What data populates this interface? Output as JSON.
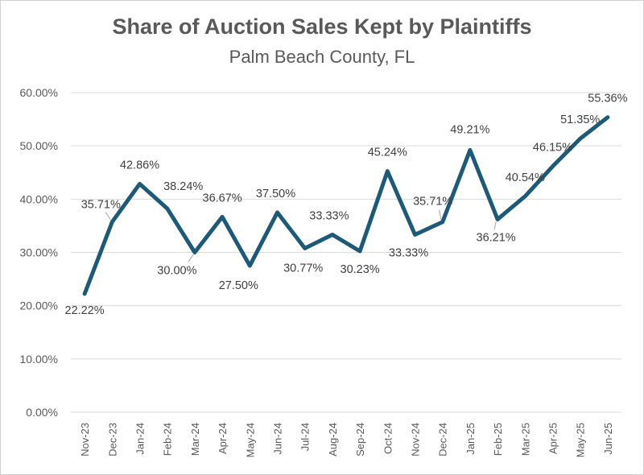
{
  "colors": {
    "line": "#1d5a78",
    "grid": "#d9d9d9",
    "text": "#595959",
    "leader": "#a6a6a6"
  },
  "chart_data": {
    "type": "line",
    "title": "Share of Auction Sales Kept by Plaintiffs",
    "subtitle": "Palm Beach County, FL",
    "xlabel": "",
    "ylabel": "",
    "ylim": [
      0,
      60
    ],
    "y_ticks": [
      "0.00%",
      "10.00%",
      "20.00%",
      "30.00%",
      "40.00%",
      "50.00%",
      "60.00%"
    ],
    "grid": true,
    "categories": [
      "Nov-23",
      "Dec-23",
      "Jan-24",
      "Feb-24",
      "Mar-24",
      "Apr-24",
      "May-24",
      "Jun-24",
      "Jul-24",
      "Aug-24",
      "Sep-24",
      "Oct-24",
      "Nov-24",
      "Dec-24",
      "Jan-25",
      "Feb-25",
      "Mar-25",
      "Apr-25",
      "May-25",
      "Jun-25"
    ],
    "series": [
      {
        "values": [
          22.22,
          35.71,
          42.86,
          38.24,
          30.0,
          36.67,
          27.5,
          37.5,
          30.77,
          33.33,
          30.23,
          45.24,
          33.33,
          35.71,
          49.21,
          36.21,
          40.54,
          46.15,
          51.35,
          55.36
        ],
        "labels": [
          "22.22%",
          "35.71%",
          "42.86%",
          "38.24%",
          "30.00%",
          "36.67%",
          "27.50%",
          "37.50%",
          "30.77%",
          "33.33%",
          "30.23%",
          "45.24%",
          "33.33%",
          "35.71%",
          "49.21%",
          "36.21%",
          "40.54%",
          "46.15%",
          "51.35%",
          "55.36%"
        ]
      }
    ]
  }
}
